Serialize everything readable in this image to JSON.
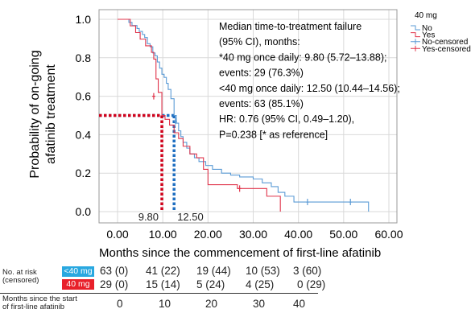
{
  "chart_data": {
    "type": "line",
    "chart_kind": "kaplan-meier",
    "xlabel": "Months since the commencement of first-line afatinib",
    "ylabel_line1": "Probability of on-going",
    "ylabel_line2": "afatinib treatment",
    "xlim": [
      0,
      60
    ],
    "ylim": [
      0,
      1.0
    ],
    "x_ticks": [
      "0.00",
      "10.00",
      "20.00",
      "30.00",
      "40.00",
      "50.00",
      "60.00"
    ],
    "x_tick_values": [
      0,
      10,
      20,
      30,
      40,
      50,
      60
    ],
    "y_ticks": [
      "0.0",
      "0.2",
      "0.4",
      "0.6",
      "0.8",
      "1.0"
    ],
    "y_tick_values": [
      0,
      0.2,
      0.4,
      0.6,
      0.8,
      1.0
    ],
    "grid": true,
    "legend_title": "40 mg",
    "legend_position": "top-right",
    "legend": [
      "No",
      "Yes",
      "No-censored",
      "Yes-censored"
    ],
    "colors": {
      "no": "#5b9bd5",
      "yes": "#e0334a",
      "median_no": "#1f6fc1",
      "median_yes": "#d0021b"
    },
    "series": [
      {
        "name": "No",
        "color": "#5b9bd5",
        "points": [
          [
            0,
            1.0
          ],
          [
            2.5,
            0.984
          ],
          [
            3.2,
            0.968
          ],
          [
            4.3,
            0.952
          ],
          [
            4.8,
            0.937
          ],
          [
            5.5,
            0.921
          ],
          [
            6.0,
            0.905
          ],
          [
            6.6,
            0.873
          ],
          [
            7.2,
            0.857
          ],
          [
            7.8,
            0.825
          ],
          [
            8.3,
            0.81
          ],
          [
            8.8,
            0.778
          ],
          [
            9.3,
            0.746
          ],
          [
            9.8,
            0.714
          ],
          [
            10.3,
            0.698
          ],
          [
            10.8,
            0.667
          ],
          [
            11.2,
            0.635
          ],
          [
            11.8,
            0.587
          ],
          [
            12.5,
            0.5
          ],
          [
            13.0,
            0.46
          ],
          [
            13.5,
            0.42
          ],
          [
            14.0,
            0.39
          ],
          [
            14.5,
            0.36
          ],
          [
            15.3,
            0.33
          ],
          [
            16.0,
            0.3
          ],
          [
            17.0,
            0.28
          ],
          [
            18.0,
            0.26
          ],
          [
            19.5,
            0.24
          ],
          [
            21.0,
            0.22
          ],
          [
            23.0,
            0.2
          ],
          [
            25.0,
            0.19
          ],
          [
            27.0,
            0.18
          ],
          [
            30.0,
            0.17
          ],
          [
            32.0,
            0.15
          ],
          [
            34.0,
            0.13
          ],
          [
            35.5,
            0.1
          ],
          [
            37.0,
            0.08
          ],
          [
            39.0,
            0.05
          ],
          [
            55.5,
            0.05
          ],
          [
            55.5,
            0.0
          ]
        ],
        "censored": [
          [
            12.8,
            0.47
          ],
          [
            42.0,
            0.05
          ],
          [
            51.5,
            0.05
          ]
        ]
      },
      {
        "name": "Yes",
        "color": "#e0334a",
        "points": [
          [
            0,
            1.0
          ],
          [
            2.8,
            0.966
          ],
          [
            4.0,
            0.931
          ],
          [
            5.0,
            0.897
          ],
          [
            6.2,
            0.862
          ],
          [
            7.5,
            0.828
          ],
          [
            8.0,
            0.793
          ],
          [
            8.5,
            0.69
          ],
          [
            9.0,
            0.62
          ],
          [
            9.8,
            0.5
          ],
          [
            10.5,
            0.48
          ],
          [
            11.5,
            0.45
          ],
          [
            12.5,
            0.41
          ],
          [
            13.5,
            0.38
          ],
          [
            14.5,
            0.34
          ],
          [
            16.0,
            0.3
          ],
          [
            17.5,
            0.28
          ],
          [
            19.0,
            0.22
          ],
          [
            20.0,
            0.14
          ],
          [
            26.0,
            0.14
          ],
          [
            26.5,
            0.12
          ],
          [
            33.0,
            0.12
          ],
          [
            33.0,
            0.08
          ],
          [
            36.0,
            0.08
          ],
          [
            36.0,
            0.0
          ]
        ],
        "censored": [
          [
            8.0,
            0.6
          ],
          [
            27.0,
            0.12
          ]
        ]
      }
    ],
    "medians": [
      {
        "series": "Yes",
        "x": 9.8,
        "y": 0.5,
        "label": "9.80"
      },
      {
        "series": "No",
        "x": 12.5,
        "y": 0.5,
        "label": "12.50"
      }
    ],
    "annotation": [
      "Median time-to-treatment failure",
      "(95% CI), months:",
      "*40 mg once daily: 9.80 (5.72–13.88);",
      "events: 29 (76.3%)",
      "<40 mg once daily: 12.50 (10.44–14.56);",
      "events: 63 (85.1%)",
      "HR: 0.76 (95% CI, 0.49–1.20),",
      "P=0.238 [* as reference]"
    ]
  },
  "risk_table": {
    "header": "No. at risk",
    "subheader": "(censored)",
    "rows": [
      {
        "tag": "<40 mg",
        "tag_color": "#29a8e0",
        "cells": [
          "63 (0)",
          "41 (22)",
          "19 (44)",
          "10 (53)",
          "3 (60)"
        ]
      },
      {
        "tag": "40 mg",
        "tag_color": "#e8202a",
        "cells": [
          "29 (0)",
          "15 (14)",
          "5 (24)",
          "4 (25)",
          "0 (29)"
        ]
      }
    ],
    "time_label_line1": "Months since the start",
    "time_label_line2": "of first-line afatinib",
    "times": [
      "0",
      "10",
      "20",
      "30",
      "40"
    ]
  }
}
